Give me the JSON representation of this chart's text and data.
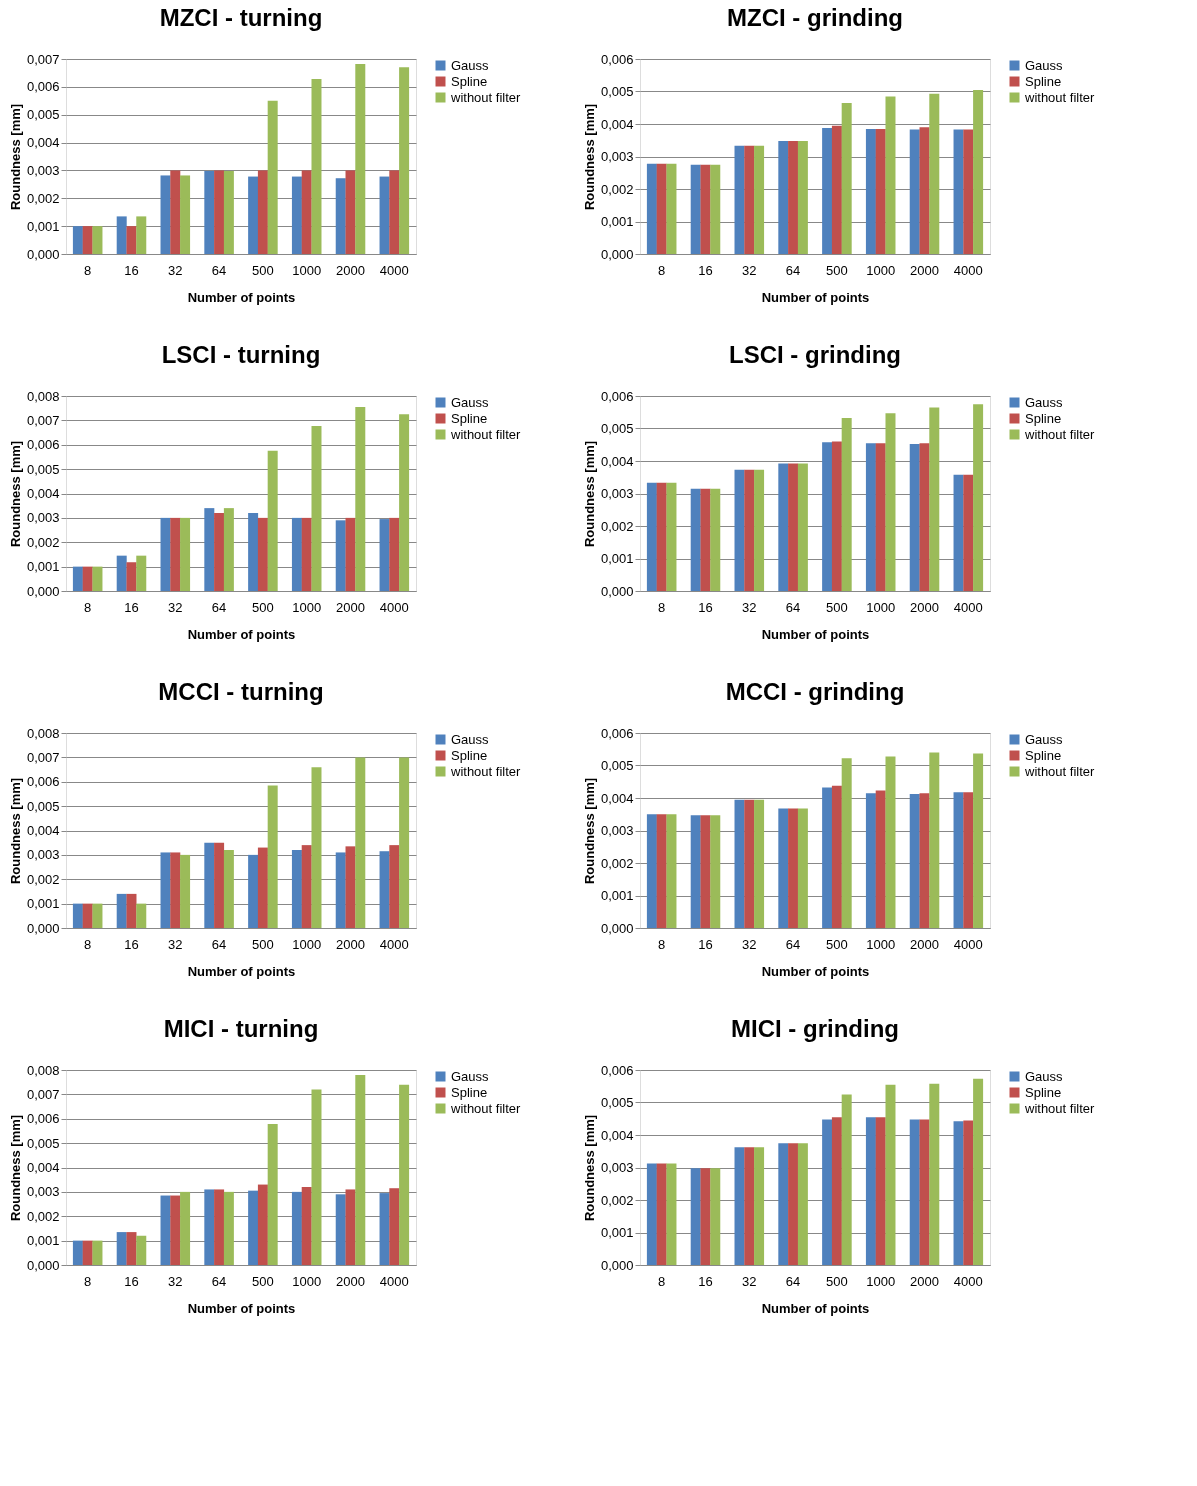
{
  "chart_data": [
    {
      "type": "bar",
      "title": "MZCI - turning",
      "xlabel": "Number of points",
      "ylabel": "Roundness [mm]",
      "categories": [
        "8",
        "16",
        "32",
        "64",
        "500",
        "1000",
        "2000",
        "4000"
      ],
      "ylim": [
        0,
        0.007
      ],
      "yticks": [
        {
          "value": 0,
          "label": "0,000"
        },
        {
          "value": 0.001,
          "label": "0,001"
        },
        {
          "value": 0.002,
          "label": "0,002"
        },
        {
          "value": 0.003,
          "label": "0,003"
        },
        {
          "value": 0.004,
          "label": "0,004"
        },
        {
          "value": 0.005,
          "label": "0,005"
        },
        {
          "value": 0.006,
          "label": "0,006"
        },
        {
          "value": 0.007,
          "label": "0,007"
        }
      ],
      "grid": "y",
      "legend": "right",
      "series": [
        {
          "name": "Gauss",
          "color": "#4f81bd",
          "values": [
            0.001,
            0.00135,
            0.00282,
            0.00298,
            0.00278,
            0.00278,
            0.00272,
            0.00278
          ]
        },
        {
          "name": "Spline",
          "color": "#c0504d",
          "values": [
            0.001,
            0.001,
            0.003,
            0.003,
            0.003,
            0.003,
            0.003,
            0.003
          ]
        },
        {
          "name": "without filter",
          "color": "#9bbb59",
          "values": [
            0.001,
            0.00135,
            0.00282,
            0.00298,
            0.0055,
            0.00628,
            0.00682,
            0.0067
          ]
        }
      ]
    },
    {
      "type": "bar",
      "title": "MZCI - grinding",
      "xlabel": "Number of points",
      "ylabel": "Roundness [mm]",
      "categories": [
        "8",
        "16",
        "32",
        "64",
        "500",
        "1000",
        "2000",
        "4000"
      ],
      "ylim": [
        0,
        0.006
      ],
      "yticks": [
        {
          "value": 0,
          "label": "0,000"
        },
        {
          "value": 0.001,
          "label": "0,001"
        },
        {
          "value": 0.002,
          "label": "0,002"
        },
        {
          "value": 0.003,
          "label": "0,003"
        },
        {
          "value": 0.004,
          "label": "0,004"
        },
        {
          "value": 0.005,
          "label": "0,005"
        },
        {
          "value": 0.006,
          "label": "0,006"
        }
      ],
      "grid": "y",
      "legend": "right",
      "series": [
        {
          "name": "Gauss",
          "color": "#4f81bd",
          "values": [
            0.00278,
            0.00275,
            0.00333,
            0.00348,
            0.00388,
            0.00385,
            0.00383,
            0.00383
          ]
        },
        {
          "name": "Spline",
          "color": "#c0504d",
          "values": [
            0.00278,
            0.00275,
            0.00333,
            0.00348,
            0.00395,
            0.00385,
            0.0039,
            0.00383
          ]
        },
        {
          "name": "without filter",
          "color": "#9bbb59",
          "values": [
            0.00278,
            0.00275,
            0.00333,
            0.00348,
            0.00465,
            0.00485,
            0.00493,
            0.00505
          ]
        }
      ]
    },
    {
      "type": "bar",
      "title": "LSCI - turning",
      "xlabel": "Number of points",
      "ylabel": "Roundness [mm]",
      "categories": [
        "8",
        "16",
        "32",
        "64",
        "500",
        "1000",
        "2000",
        "4000"
      ],
      "ylim": [
        0,
        0.008
      ],
      "yticks": [
        {
          "value": 0,
          "label": "0,000"
        },
        {
          "value": 0.001,
          "label": "0,001"
        },
        {
          "value": 0.002,
          "label": "0,002"
        },
        {
          "value": 0.003,
          "label": "0,003"
        },
        {
          "value": 0.004,
          "label": "0,004"
        },
        {
          "value": 0.005,
          "label": "0,005"
        },
        {
          "value": 0.006,
          "label": "0,006"
        },
        {
          "value": 0.007,
          "label": "0,007"
        },
        {
          "value": 0.008,
          "label": "0,008"
        }
      ],
      "grid": "y",
      "legend": "right",
      "series": [
        {
          "name": "Gauss",
          "color": "#4f81bd",
          "values": [
            0.001,
            0.00145,
            0.003,
            0.0034,
            0.0032,
            0.003,
            0.0029,
            0.00295
          ]
        },
        {
          "name": "Spline",
          "color": "#c0504d",
          "values": [
            0.001,
            0.00118,
            0.003,
            0.0032,
            0.003,
            0.003,
            0.003,
            0.003
          ]
        },
        {
          "name": "without filter",
          "color": "#9bbb59",
          "values": [
            0.001,
            0.00145,
            0.003,
            0.0034,
            0.00575,
            0.00677,
            0.00755,
            0.00725
          ]
        }
      ]
    },
    {
      "type": "bar",
      "title": "LSCI - grinding",
      "xlabel": "Number of points",
      "ylabel": "Roundness [mm]",
      "categories": [
        "8",
        "16",
        "32",
        "64",
        "500",
        "1000",
        "2000",
        "4000"
      ],
      "ylim": [
        0,
        0.006
      ],
      "yticks": [
        {
          "value": 0,
          "label": "0,000"
        },
        {
          "value": 0.001,
          "label": "0,001"
        },
        {
          "value": 0.002,
          "label": "0,002"
        },
        {
          "value": 0.003,
          "label": "0,003"
        },
        {
          "value": 0.004,
          "label": "0,004"
        },
        {
          "value": 0.005,
          "label": "0,005"
        },
        {
          "value": 0.006,
          "label": "0,006"
        }
      ],
      "grid": "y",
      "legend": "right",
      "series": [
        {
          "name": "Gauss",
          "color": "#4f81bd",
          "values": [
            0.00333,
            0.00315,
            0.00373,
            0.00392,
            0.00458,
            0.00455,
            0.00452,
            0.00358
          ]
        },
        {
          "name": "Spline",
          "color": "#c0504d",
          "values": [
            0.00333,
            0.00315,
            0.00373,
            0.00392,
            0.0046,
            0.00455,
            0.00455,
            0.00358
          ]
        },
        {
          "name": "without filter",
          "color": "#9bbb59",
          "values": [
            0.00333,
            0.00315,
            0.00373,
            0.00392,
            0.00532,
            0.00547,
            0.00565,
            0.00575
          ]
        }
      ]
    },
    {
      "type": "bar",
      "title": "MCCI - turning",
      "xlabel": "Number of points",
      "ylabel": "Roundness [mm]",
      "categories": [
        "8",
        "16",
        "32",
        "64",
        "500",
        "1000",
        "2000",
        "4000"
      ],
      "ylim": [
        0,
        0.008
      ],
      "yticks": [
        {
          "value": 0,
          "label": "0,000"
        },
        {
          "value": 0.001,
          "label": "0,001"
        },
        {
          "value": 0.002,
          "label": "0,002"
        },
        {
          "value": 0.003,
          "label": "0,003"
        },
        {
          "value": 0.004,
          "label": "0,004"
        },
        {
          "value": 0.005,
          "label": "0,005"
        },
        {
          "value": 0.006,
          "label": "0,006"
        },
        {
          "value": 0.007,
          "label": "0,007"
        },
        {
          "value": 0.008,
          "label": "0,008"
        }
      ],
      "grid": "y",
      "legend": "right",
      "series": [
        {
          "name": "Gauss",
          "color": "#4f81bd",
          "values": [
            0.001,
            0.0014,
            0.0031,
            0.0035,
            0.003,
            0.0032,
            0.0031,
            0.00315
          ]
        },
        {
          "name": "Spline",
          "color": "#c0504d",
          "values": [
            0.001,
            0.0014,
            0.0031,
            0.0035,
            0.0033,
            0.0034,
            0.00335,
            0.0034
          ]
        },
        {
          "name": "without filter",
          "color": "#9bbb59",
          "values": [
            0.001,
            0.001,
            0.003,
            0.0032,
            0.00585,
            0.0066,
            0.007,
            0.007
          ]
        }
      ]
    },
    {
      "type": "bar",
      "title": "MCCI - grinding",
      "xlabel": "Number of points",
      "ylabel": "Roundness [mm]",
      "categories": [
        "8",
        "16",
        "32",
        "64",
        "500",
        "1000",
        "2000",
        "4000"
      ],
      "ylim": [
        0,
        0.006
      ],
      "yticks": [
        {
          "value": 0,
          "label": "0,000"
        },
        {
          "value": 0.001,
          "label": "0,001"
        },
        {
          "value": 0.002,
          "label": "0,002"
        },
        {
          "value": 0.003,
          "label": "0,003"
        },
        {
          "value": 0.004,
          "label": "0,004"
        },
        {
          "value": 0.005,
          "label": "0,005"
        },
        {
          "value": 0.006,
          "label": "0,006"
        }
      ],
      "grid": "y",
      "legend": "right",
      "series": [
        {
          "name": "Gauss",
          "color": "#4f81bd",
          "values": [
            0.0035,
            0.00347,
            0.00395,
            0.00368,
            0.00432,
            0.00415,
            0.00412,
            0.00418
          ]
        },
        {
          "name": "Spline",
          "color": "#c0504d",
          "values": [
            0.0035,
            0.00347,
            0.00395,
            0.00368,
            0.00438,
            0.00423,
            0.00415,
            0.00418
          ]
        },
        {
          "name": "without filter",
          "color": "#9bbb59",
          "values": [
            0.0035,
            0.00347,
            0.00395,
            0.00368,
            0.00522,
            0.00528,
            0.0054,
            0.00537
          ]
        }
      ]
    },
    {
      "type": "bar",
      "title": "MICI - turning",
      "xlabel": "Number of points",
      "ylabel": "Roundness [mm]",
      "categories": [
        "8",
        "16",
        "32",
        "64",
        "500",
        "1000",
        "2000",
        "4000"
      ],
      "ylim": [
        0,
        0.008
      ],
      "yticks": [
        {
          "value": 0,
          "label": "0,000"
        },
        {
          "value": 0.001,
          "label": "0,001"
        },
        {
          "value": 0.002,
          "label": "0,002"
        },
        {
          "value": 0.003,
          "label": "0,003"
        },
        {
          "value": 0.004,
          "label": "0,004"
        },
        {
          "value": 0.005,
          "label": "0,005"
        },
        {
          "value": 0.006,
          "label": "0,006"
        },
        {
          "value": 0.007,
          "label": "0,007"
        },
        {
          "value": 0.008,
          "label": "0,008"
        }
      ],
      "grid": "y",
      "legend": "right",
      "series": [
        {
          "name": "Gauss",
          "color": "#4f81bd",
          "values": [
            0.001,
            0.00135,
            0.00285,
            0.0031,
            0.00305,
            0.003,
            0.0029,
            0.00295
          ]
        },
        {
          "name": "Spline",
          "color": "#c0504d",
          "values": [
            0.001,
            0.00135,
            0.00285,
            0.0031,
            0.0033,
            0.0032,
            0.0031,
            0.00315
          ]
        },
        {
          "name": "without filter",
          "color": "#9bbb59",
          "values": [
            0.001,
            0.0012,
            0.003,
            0.003,
            0.00578,
            0.0072,
            0.0078,
            0.0074
          ]
        }
      ]
    },
    {
      "type": "bar",
      "title": "MICI - grinding",
      "xlabel": "Number of points",
      "ylabel": "Roundness [mm]",
      "categories": [
        "8",
        "16",
        "32",
        "64",
        "500",
        "1000",
        "2000",
        "4000"
      ],
      "ylim": [
        0,
        0.006
      ],
      "yticks": [
        {
          "value": 0,
          "label": "0,000"
        },
        {
          "value": 0.001,
          "label": "0,001"
        },
        {
          "value": 0.002,
          "label": "0,002"
        },
        {
          "value": 0.003,
          "label": "0,003"
        },
        {
          "value": 0.004,
          "label": "0,004"
        },
        {
          "value": 0.005,
          "label": "0,005"
        },
        {
          "value": 0.006,
          "label": "0,006"
        }
      ],
      "grid": "y",
      "legend": "right",
      "series": [
        {
          "name": "Gauss",
          "color": "#4f81bd",
          "values": [
            0.00312,
            0.00298,
            0.00362,
            0.00375,
            0.00448,
            0.00455,
            0.00448,
            0.00442
          ]
        },
        {
          "name": "Spline",
          "color": "#c0504d",
          "values": [
            0.00312,
            0.00298,
            0.00362,
            0.00375,
            0.00455,
            0.00455,
            0.00448,
            0.00445
          ]
        },
        {
          "name": "without filter",
          "color": "#9bbb59",
          "values": [
            0.00312,
            0.00298,
            0.00362,
            0.00375,
            0.00525,
            0.00555,
            0.00558,
            0.00573
          ]
        }
      ]
    }
  ]
}
